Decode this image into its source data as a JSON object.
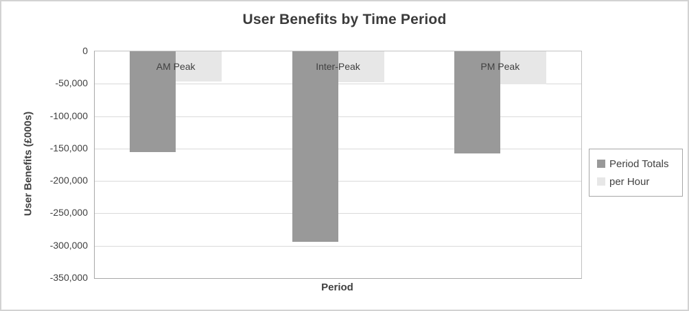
{
  "chart_data": {
    "type": "bar",
    "title": "User Benefits by Time Period",
    "xlabel": "Period",
    "ylabel": "User Benefits (£000s)",
    "categories": [
      "AM Peak",
      "Inter-Peak",
      "PM Peak"
    ],
    "series": [
      {
        "name": "Period Totals",
        "color": "#999999",
        "values": [
          -155000,
          -294000,
          -158000
        ]
      },
      {
        "name": "per Hour",
        "color": "#e7e7e7",
        "values": [
          -46000,
          -48000,
          -51000
        ]
      }
    ],
    "ylim": [
      -350000,
      0
    ],
    "ytick_step": 50000,
    "ytick_labels": [
      "0",
      "-50,000",
      "-100,000",
      "-150,000",
      "-200,000",
      "-250,000",
      "-300,000",
      "-350,000"
    ],
    "grid": true,
    "legend_position": "right",
    "colors": {
      "title_text": "#3b3b3b",
      "axis_text": "#404040",
      "gridline": "#d9d9d9",
      "axis_line": "#a6a6a6",
      "plot_border": "#c0c0c0",
      "outer_border": "#d2d2d2"
    }
  }
}
